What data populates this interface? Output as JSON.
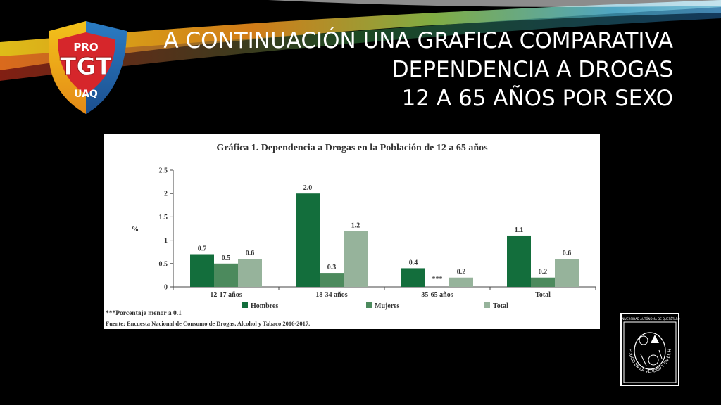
{
  "slide": {
    "title_lines": [
      "A CONTINUACIÓN UNA GRAFICA COMPARATIVA",
      "DEPENDENCIA A DROGAS",
      "12 A 65 AÑOS POR SEXO"
    ]
  },
  "logo": {
    "top_text": "PRO",
    "main_text": "TGT",
    "bottom_text": "UAQ"
  },
  "seal": {
    "top_text": "UNIVERSIDAD AUTÓNOMA DE QUERÉTARO",
    "ring_text": "EDUCO EN LA VERDAD Y EN EL HONOR"
  },
  "colors": {
    "hombres": "#136e3c",
    "mujeres": "#4c8a5d",
    "total": "#96b39b"
  },
  "chart_data": {
    "type": "bar",
    "title": "Gráfica 1. Dependencia a Drogas en la Población de 12 a 65 años",
    "ylabel": "%",
    "ylim": [
      0,
      2.5
    ],
    "yticks": [
      0,
      0.5,
      1,
      1.5,
      2,
      2.5
    ],
    "ytick_labels": [
      "0",
      "0.5",
      "1",
      "1.5",
      "2",
      "2.5"
    ],
    "categories": [
      "12-17 años",
      "18-34 años",
      "35-65 años",
      "Total"
    ],
    "series": [
      {
        "name": "Hombres",
        "values": [
          0.7,
          2.0,
          0.4,
          1.1
        ],
        "labels": [
          "0.7",
          "2.0",
          "0.4",
          "1.1"
        ]
      },
      {
        "name": "Mujeres",
        "values": [
          0.5,
          0.3,
          null,
          0.2
        ],
        "labels": [
          "0.5",
          "0.3",
          "***",
          "0.2"
        ]
      },
      {
        "name": "Total",
        "values": [
          0.6,
          1.2,
          0.2,
          0.6
        ],
        "labels": [
          "0.6",
          "1.2",
          "0.2",
          "0.6"
        ]
      }
    ],
    "legend_position": "bottom",
    "footnote": "***Porcentaje menor a 0.1",
    "source": "Fuente: Encuesta Nacional de Consumo de Drogas, Alcohol y Tabaco 2016-2017."
  }
}
